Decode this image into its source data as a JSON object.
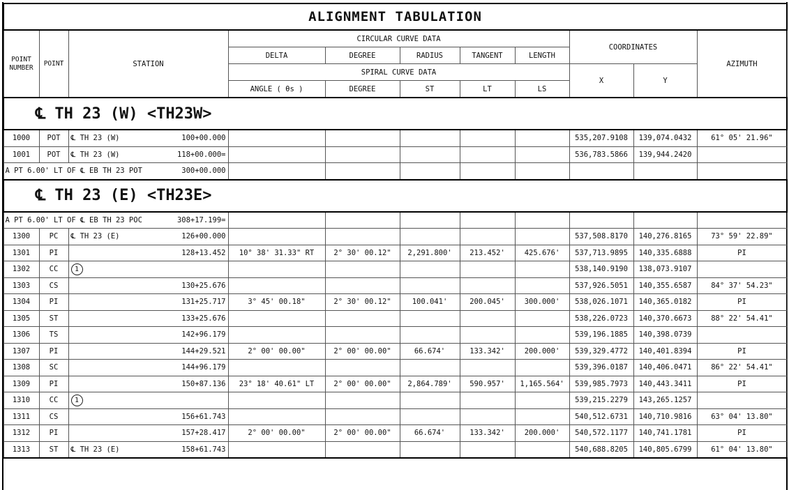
{
  "title": "ALIGNMENT TABULATION",
  "headers": {
    "point_number": "POINT NUMBER",
    "point": "POINT",
    "station": "STATION",
    "circular_curve_data": "CIRCULAR CURVE DATA",
    "delta": "DELTA",
    "degree": "DEGREE",
    "radius": "RADIUS",
    "tangent": "TANGENT",
    "length": "LENGTH",
    "coordinates": "COORDINATES",
    "azimuth": "AZIMUTH",
    "spiral_curve_data": "SPIRAL CURVE DATA",
    "x": "X",
    "y": "Y",
    "angle": "ANGLE ( θs )",
    "spiral_degree": "DEGREE",
    "st": "ST",
    "lt": "LT",
    "ls": "LS"
  },
  "sections": [
    {
      "title": "℄ TH 23 (W) <TH23W>",
      "rows": [
        {
          "num": "1000",
          "pt": "POT",
          "label": "℄ TH 23 (W)",
          "station": "100+00.000",
          "delta": "",
          "degree": "",
          "radius": "",
          "tangent": "",
          "length": "",
          "x": "535,207.9108",
          "y": "139,074.0432",
          "azimuth": "61° 05' 21.96\""
        },
        {
          "num": "1001",
          "pt": "POT",
          "label": "℄ TH 23 (W)",
          "station": "118+00.000=",
          "delta": "",
          "degree": "",
          "radius": "",
          "tangent": "",
          "length": "",
          "x": "536,783.5866",
          "y": "139,944.2420",
          "azimuth": ""
        },
        {
          "note": "A PT 6.00' LT OF ℄ EB TH 23 POT",
          "station": "300+00.000"
        }
      ]
    },
    {
      "title": "℄ TH 23 (E) <TH23E>",
      "rows": [
        {
          "note": "A PT 6.00' LT OF ℄ EB TH 23 POC",
          "station": "308+17.199="
        },
        {
          "num": "1300",
          "pt": "PC",
          "label": "℄ TH 23 (E)",
          "station": "126+00.000",
          "delta": "",
          "degree": "",
          "radius": "",
          "tangent": "",
          "length": "",
          "x": "537,508.8170",
          "y": "140,276.8165",
          "azimuth": "73° 59' 22.89\""
        },
        {
          "num": "1301",
          "pt": "PI",
          "label": "",
          "station": "128+13.452",
          "delta": "10° 38' 31.33\" RT",
          "degree": "2° 30' 00.12\"",
          "radius": "2,291.800'",
          "tangent": "213.452'",
          "length": "425.676'",
          "x": "537,713.9895",
          "y": "140,335.6888",
          "azimuth": "PI"
        },
        {
          "num": "1302",
          "pt": "CC",
          "marker": "1",
          "label": "",
          "station": "",
          "delta": "",
          "degree": "",
          "radius": "",
          "tangent": "",
          "length": "",
          "x": "538,140.9190",
          "y": "138,073.9107",
          "azimuth": ""
        },
        {
          "num": "1303",
          "pt": "CS",
          "label": "",
          "station": "130+25.676",
          "delta": "",
          "degree": "",
          "radius": "",
          "tangent": "",
          "length": "",
          "x": "537,926.5051",
          "y": "140,355.6587",
          "azimuth": "84° 37' 54.23\""
        },
        {
          "num": "1304",
          "pt": "PI",
          "label": "",
          "station": "131+25.717",
          "delta": "3° 45' 00.18\"",
          "degree": "2° 30' 00.12\"",
          "radius": "100.041'",
          "tangent": "200.045'",
          "length": "300.000'",
          "x": "538,026.1071",
          "y": "140,365.0182",
          "azimuth": "PI"
        },
        {
          "num": "1305",
          "pt": "ST",
          "label": "",
          "station": "133+25.676",
          "delta": "",
          "degree": "",
          "radius": "",
          "tangent": "",
          "length": "",
          "x": "538,226.0723",
          "y": "140,370.6673",
          "azimuth": "88° 22' 54.41\""
        },
        {
          "num": "1306",
          "pt": "TS",
          "label": "",
          "station": "142+96.179",
          "delta": "",
          "degree": "",
          "radius": "",
          "tangent": "",
          "length": "",
          "x": "539,196.1885",
          "y": "140,398.0739",
          "azimuth": ""
        },
        {
          "num": "1307",
          "pt": "PI",
          "label": "",
          "station": "144+29.521",
          "delta": "2° 00' 00.00\"",
          "degree": "2° 00' 00.00\"",
          "radius": "66.674'",
          "tangent": "133.342'",
          "length": "200.000'",
          "x": "539,329.4772",
          "y": "140,401.8394",
          "azimuth": "PI"
        },
        {
          "num": "1308",
          "pt": "SC",
          "label": "",
          "station": "144+96.179",
          "delta": "",
          "degree": "",
          "radius": "",
          "tangent": "",
          "length": "",
          "x": "539,396.0187",
          "y": "140,406.0471",
          "azimuth": "86° 22' 54.41\""
        },
        {
          "num": "1309",
          "pt": "PI",
          "label": "",
          "station": "150+87.136",
          "delta": "23° 18' 40.61\" LT",
          "degree": "2° 00' 00.00\"",
          "radius": "2,864.789'",
          "tangent": "590.957'",
          "length": "1,165.564'",
          "x": "539,985.7973",
          "y": "140,443.3411",
          "azimuth": "PI"
        },
        {
          "num": "1310",
          "pt": "CC",
          "marker": "1",
          "label": "",
          "station": "",
          "delta": "",
          "degree": "",
          "radius": "",
          "tangent": "",
          "length": "",
          "x": "539,215.2279",
          "y": "143,265.1257",
          "azimuth": ""
        },
        {
          "num": "1311",
          "pt": "CS",
          "label": "",
          "station": "156+61.743",
          "delta": "",
          "degree": "",
          "radius": "",
          "tangent": "",
          "length": "",
          "x": "540,512.6731",
          "y": "140,710.9816",
          "azimuth": "63° 04' 13.80\""
        },
        {
          "num": "1312",
          "pt": "PI",
          "label": "",
          "station": "157+28.417",
          "delta": "2° 00' 00.00\"",
          "degree": "2° 00' 00.00\"",
          "radius": "66.674'",
          "tangent": "133.342'",
          "length": "200.000'",
          "x": "540,572.1177",
          "y": "140,741.1781",
          "azimuth": "PI"
        },
        {
          "num": "1313",
          "pt": "ST",
          "label": "℄ TH 23 (E)",
          "station": "158+61.743",
          "delta": "",
          "degree": "",
          "radius": "",
          "tangent": "",
          "length": "",
          "x": "540,688.8205",
          "y": "140,805.6799",
          "azimuth": "61° 04' 13.80\""
        }
      ]
    }
  ]
}
